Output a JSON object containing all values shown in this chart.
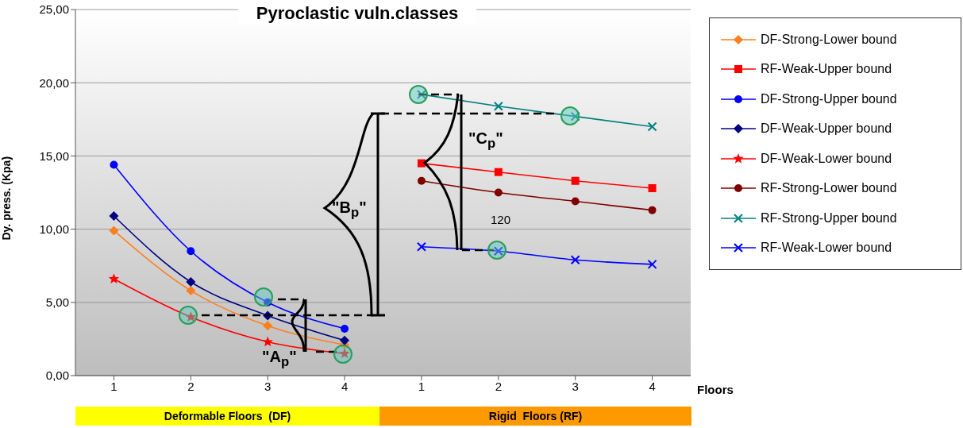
{
  "chart_data": {
    "type": "line",
    "title": "Pyroclastic vuln.classes",
    "xlabel": "Floors",
    "ylabel": "Dy. press. (Kpa)",
    "categories": [
      "1",
      "2",
      "3",
      "4",
      "1",
      "2",
      "3",
      "4"
    ],
    "ylim": [
      0,
      25
    ],
    "yticks": [
      {
        "value": 0,
        "label": "0,00"
      },
      {
        "value": 5,
        "label": "5,00"
      },
      {
        "value": 10,
        "label": "10,00"
      },
      {
        "value": 15,
        "label": "15,00"
      },
      {
        "value": 20,
        "label": "20,00"
      },
      {
        "value": 25,
        "label": "25,00"
      }
    ],
    "grid": "y",
    "legend": "right",
    "series": [
      {
        "name": "DF-Strong-Lower bound",
        "color": "#ff7f1e",
        "marker": "diamond",
        "values": [
          9.9,
          5.8,
          3.4,
          2.1,
          null,
          null,
          null,
          null
        ]
      },
      {
        "name": "RF-Weak-Upper bound",
        "color": "#ff0000",
        "marker": "square",
        "values": [
          null,
          null,
          null,
          null,
          14.5,
          13.9,
          13.3,
          12.8
        ]
      },
      {
        "name": "DF-Strong-Upper bound",
        "color": "#0000ff",
        "marker": "circle",
        "values": [
          14.4,
          8.5,
          5.0,
          3.2,
          null,
          null,
          null,
          null
        ]
      },
      {
        "name": "DF-Weak-Upper bound",
        "color": "#000080",
        "marker": "diamond",
        "values": [
          10.9,
          6.4,
          4.1,
          2.4,
          null,
          null,
          null,
          null
        ]
      },
      {
        "name": "DF-Weak-Lower bound",
        "color": "#ff0000",
        "marker": "star",
        "values": [
          6.6,
          4.0,
          2.3,
          1.5,
          null,
          null,
          null,
          null
        ]
      },
      {
        "name": "RF-Strong-Lower bound",
        "color": "#800000",
        "marker": "circle",
        "values": [
          null,
          null,
          null,
          null,
          13.3,
          12.5,
          11.9,
          11.3
        ]
      },
      {
        "name": "RF-Strong-Upper bound",
        "color": "#008080",
        "marker": "cross",
        "values": [
          null,
          null,
          null,
          null,
          19.2,
          18.4,
          17.7,
          17.0
        ]
      },
      {
        "name": "RF-Weak-Lower bound",
        "color": "#0000ff",
        "marker": "cross",
        "values": [
          null,
          null,
          null,
          null,
          8.8,
          8.5,
          7.9,
          7.6
        ]
      }
    ],
    "annotations": [
      "\"A$_{p}$\"",
      "\"B$_{p}$\"",
      "\"C$_{p}$\"",
      "120",
      "Deformable Floors  (DF)",
      "Rigid  Floors (RF)"
    ]
  }
}
